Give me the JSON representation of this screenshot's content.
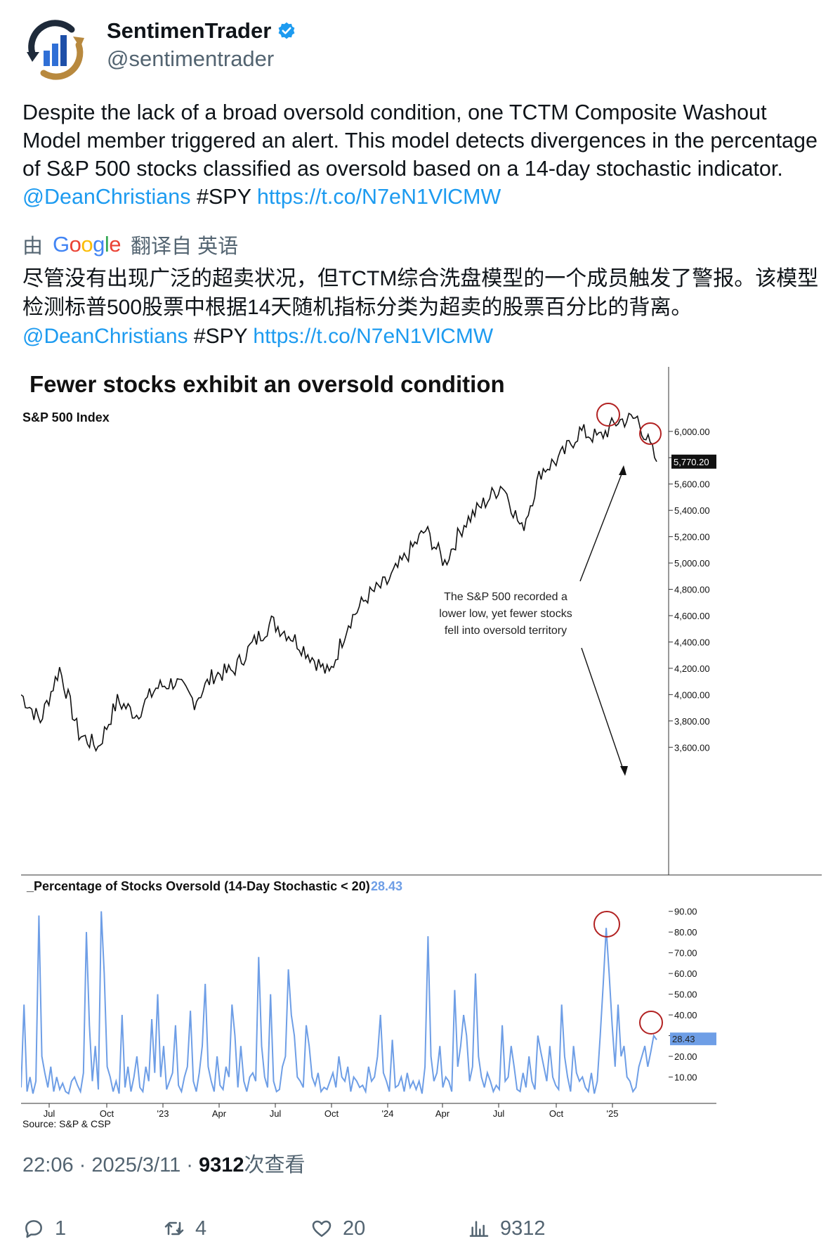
{
  "tweet": {
    "display_name": "SentimenTrader",
    "handle": "@sentimentrader",
    "text_main": "Despite the lack of a broad oversold condition, one TCTM Composite Washout Model member triggered an alert. This model detects divergences in the percentage of S&P 500 stocks classified as oversold based on a 14-day stochastic indicator. ",
    "mention": "@DeanChristians",
    "hashtag": " #SPY ",
    "url": "https://t.co/N7eN1VlCMW",
    "translate_prefix": "由",
    "translate_suffix": "翻译自 英语",
    "translated_text": "尽管没有出现广泛的超卖状况，但TCTM综合洗盘模型的一个成员触发了警报。该模型检测标普500股票中根据14天随机指标分类为超卖的股票百分比的背离。",
    "timestamp": "22:06 · 2025/3/11 · ",
    "views_count": "9312",
    "views_label": "次查看"
  },
  "actions": {
    "replies": "1",
    "retweets": "4",
    "likes": "20",
    "views": "9312"
  },
  "colors": {
    "link": "#1d9bf0",
    "spx_line": "#111111",
    "oversold_line": "#6e9ee6",
    "circle": "#b22222"
  },
  "chart_data": [
    {
      "type": "line",
      "title": "Fewer stocks exhibit an oversold condition",
      "panel_title": "S&P 500 Index",
      "ylim": [
        3500,
        6250
      ],
      "yticks": [
        "6,000.00",
        "5,800.00",
        "5,600.00",
        "5,400.00",
        "5,200.00",
        "5,000.00",
        "4,800.00",
        "4,600.00",
        "4,400.00",
        "4,200.00",
        "4,000.00",
        "3,800.00",
        "3,600.00"
      ],
      "last_value_label": "5,770.20",
      "annotation": [
        "The S&P 500 recorded a",
        "lower low, yet fewer stocks",
        "fell into oversold territory"
      ],
      "series": [
        {
          "x": [
            "2022-06",
            "2022-07",
            "2022-08",
            "2022-09",
            "2022-10",
            "2022-11",
            "2022-12",
            "2023-01",
            "2023-02",
            "2023-03",
            "2023-04",
            "2023-05",
            "2023-06",
            "2023-07",
            "2023-08",
            "2023-09",
            "2023-10",
            "2023-11",
            "2023-12",
            "2024-01",
            "2024-02",
            "2024-03",
            "2024-04",
            "2024-05",
            "2024-06",
            "2024-07",
            "2024-08",
            "2024-09",
            "2024-10",
            "2024-11",
            "2024-12",
            "2025-01",
            "2025-02",
            "2025-03"
          ],
          "values": [
            4000,
            3800,
            4200,
            3700,
            3600,
            3950,
            3850,
            4050,
            4100,
            3950,
            4150,
            4180,
            4380,
            4550,
            4450,
            4300,
            4150,
            4550,
            4750,
            4850,
            5050,
            5250,
            5000,
            5300,
            5450,
            5600,
            5250,
            5700,
            5800,
            6000,
            5950,
            6080,
            6100,
            5770
          ]
        }
      ]
    },
    {
      "type": "line",
      "title": "Percentage of Stocks Oversold (14-Day Stochastic < 20)",
      "current_value": "28.43",
      "ylim": [
        0,
        95
      ],
      "yticks": [
        "90.00",
        "80.00",
        "70.00",
        "60.00",
        "50.00",
        "40.00",
        "30.00",
        "20.00",
        "10.00"
      ],
      "xticks": [
        "Jul",
        "Oct",
        "'23",
        "Apr",
        "Jul",
        "Oct",
        "'24",
        "Apr",
        "Jul",
        "Oct",
        "'25"
      ],
      "source": "Source: S&P & CSP",
      "series": [
        {
          "values": [
            5,
            45,
            3,
            10,
            2,
            8,
            88,
            20,
            12,
            5,
            15,
            3,
            10,
            4,
            7,
            3,
            2,
            8,
            10,
            6,
            3,
            12,
            80,
            35,
            8,
            25,
            4,
            90,
            60,
            15,
            10,
            3,
            8,
            2,
            40,
            5,
            15,
            3,
            10,
            20,
            5,
            3,
            15,
            8,
            38,
            12,
            50,
            10,
            25,
            4,
            8,
            12,
            35,
            6,
            3,
            10,
            15,
            42,
            8,
            3,
            12,
            25,
            55,
            15,
            8,
            3,
            20,
            6,
            4,
            15,
            10,
            45,
            30,
            5,
            25,
            8,
            3,
            10,
            12,
            8,
            68,
            25,
            10,
            5,
            50,
            8,
            3,
            4,
            15,
            20,
            62,
            40,
            30,
            10,
            8,
            5,
            35,
            25,
            10,
            6,
            12,
            3,
            5,
            4,
            8,
            12,
            5,
            20,
            10,
            8,
            15,
            3,
            10,
            8,
            5,
            6,
            3,
            15,
            8,
            10,
            20,
            40,
            12,
            8,
            3,
            28,
            5,
            6,
            10,
            3,
            12,
            5,
            8,
            4,
            8,
            2,
            15,
            78,
            20,
            8,
            12,
            25,
            5,
            10,
            8,
            3,
            52,
            15,
            25,
            40,
            30,
            8,
            15,
            60,
            20,
            10,
            5,
            12,
            8,
            3,
            6,
            4,
            35,
            8,
            10,
            25,
            15,
            4,
            3,
            12,
            5,
            20,
            8,
            4,
            30,
            22,
            15,
            8,
            25,
            10,
            6,
            4,
            45,
            20,
            10,
            3,
            25,
            12,
            8,
            10,
            5,
            3,
            12,
            2,
            8,
            30,
            55,
            82,
            60,
            35,
            15,
            45,
            20,
            25,
            10,
            8,
            3,
            5,
            15,
            20,
            25,
            15,
            22,
            30,
            28
          ]
        }
      ]
    }
  ]
}
